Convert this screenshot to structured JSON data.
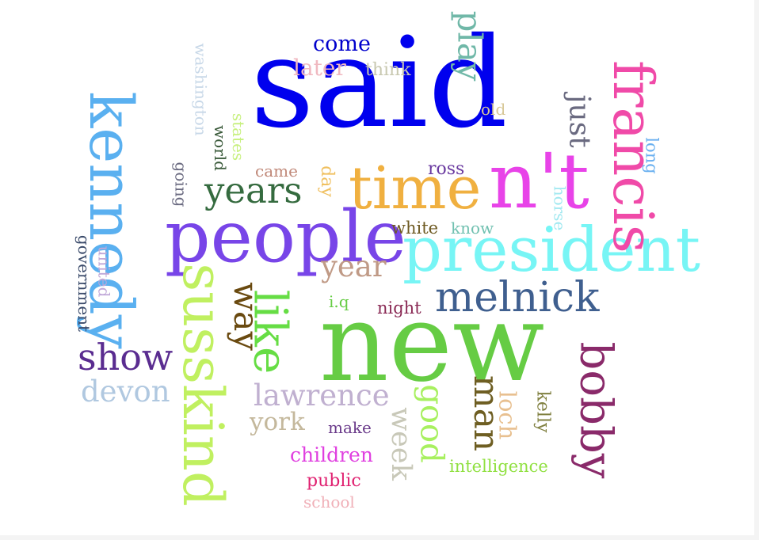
{
  "words": [
    {
      "id": "said",
      "text": "said",
      "color": "#0000ee"
    },
    {
      "id": "nt",
      "text": "n't",
      "color": "#e843e8"
    },
    {
      "id": "time",
      "text": "time",
      "color": "#f0b040"
    },
    {
      "id": "people",
      "text": "people",
      "color": "#7845e8"
    },
    {
      "id": "president",
      "text": "president",
      "color": "#77f5f5"
    },
    {
      "id": "new",
      "text": "new",
      "color": "#66cc44"
    },
    {
      "id": "melnick",
      "text": "melnick",
      "color": "#3f5f8f"
    },
    {
      "id": "years",
      "text": "years",
      "color": "#356b3f"
    },
    {
      "id": "year",
      "text": "year",
      "color": "#c09a86"
    },
    {
      "id": "show",
      "text": "show",
      "color": "#5a2c90"
    },
    {
      "id": "devon",
      "text": "devon",
      "color": "#b0c8e0"
    },
    {
      "id": "lawrence",
      "text": "lawrence",
      "color": "#c0b0d0"
    },
    {
      "id": "york",
      "text": "york",
      "color": "#c4b89c"
    },
    {
      "id": "come",
      "text": "come",
      "color": "#0000cc"
    },
    {
      "id": "later",
      "text": "later",
      "color": "#f0b8c0"
    },
    {
      "id": "think",
      "text": "think",
      "color": "#c8c8b0"
    },
    {
      "id": "came",
      "text": "came",
      "color": "#c08878"
    },
    {
      "id": "ross",
      "text": "ross",
      "color": "#6a3aa0"
    },
    {
      "id": "white",
      "text": "white",
      "color": "#6e5a22"
    },
    {
      "id": "know",
      "text": "know",
      "color": "#70c0b0"
    },
    {
      "id": "iq",
      "text": "i.q",
      "color": "#66cc44"
    },
    {
      "id": "night",
      "text": "night",
      "color": "#8a2a55"
    },
    {
      "id": "old",
      "text": "old",
      "color": "#d8c898"
    },
    {
      "id": "make",
      "text": "make",
      "color": "#6a3a8a"
    },
    {
      "id": "children",
      "text": "children",
      "color": "#e040e0"
    },
    {
      "id": "public",
      "text": "public",
      "color": "#e02070"
    },
    {
      "id": "school",
      "text": "school",
      "color": "#f0b0b8"
    },
    {
      "id": "intelligence",
      "text": "intelligence",
      "color": "#90e040"
    },
    {
      "id": "kennedy",
      "text": "kennedy",
      "color": "#5ab0f0"
    },
    {
      "id": "susskind",
      "text": "susskind",
      "color": "#c0f060"
    },
    {
      "id": "like",
      "text": "like",
      "color": "#66dd44"
    },
    {
      "id": "way",
      "text": "way",
      "color": "#6a4a10"
    },
    {
      "id": "francis",
      "text": "francis",
      "color": "#f04aa8"
    },
    {
      "id": "play",
      "text": "play",
      "color": "#70b8a8"
    },
    {
      "id": "just",
      "text": "just",
      "color": "#6a6a80"
    },
    {
      "id": "long",
      "text": "long",
      "color": "#6ab0f0"
    },
    {
      "id": "horse",
      "text": "horse",
      "color": "#a0e8f0"
    },
    {
      "id": "bobby",
      "text": "bobby",
      "color": "#8a2a6a"
    },
    {
      "id": "man",
      "text": "man",
      "color": "#6e5e22"
    },
    {
      "id": "loch",
      "text": "loch",
      "color": "#e8c090"
    },
    {
      "id": "kelly",
      "text": "kelly",
      "color": "#808040"
    },
    {
      "id": "good",
      "text": "good",
      "color": "#a8f060"
    },
    {
      "id": "week",
      "text": "week",
      "color": "#c8c8b8"
    },
    {
      "id": "day",
      "text": "day",
      "color": "#f0c060"
    },
    {
      "id": "washington",
      "text": "washington",
      "color": "#c8d8e8"
    },
    {
      "id": "states",
      "text": "states",
      "color": "#c8f080"
    },
    {
      "id": "world",
      "text": "world",
      "color": "#3a5a3a"
    },
    {
      "id": "going",
      "text": "going",
      "color": "#6a6a80"
    },
    {
      "id": "government",
      "text": "government",
      "color": "#3a4a6a"
    },
    {
      "id": "united",
      "text": "united",
      "color": "#c0a8d8"
    }
  ]
}
